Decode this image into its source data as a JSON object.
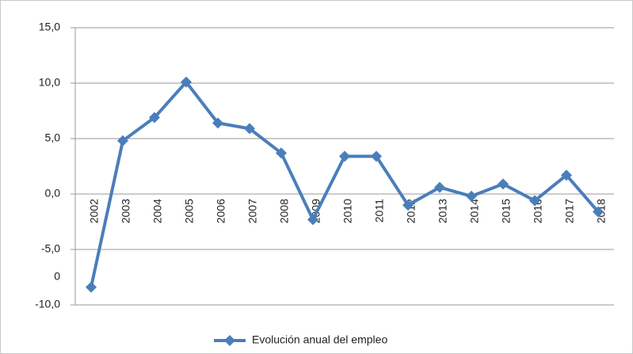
{
  "chart_data": {
    "type": "line",
    "categories": [
      "2002",
      "2003",
      "2004",
      "2005",
      "2006",
      "2007",
      "2008",
      "2009",
      "2010",
      "2011",
      "2012",
      "2013",
      "2014",
      "2015",
      "2016",
      "2017",
      "2018"
    ],
    "series": [
      {
        "name": "Evolución anual del empleo",
        "color": "#4a7ebb",
        "values": [
          -8.4,
          4.8,
          6.9,
          10.1,
          6.4,
          5.9,
          3.7,
          -2.3,
          3.4,
          3.4,
          -1.0,
          0.6,
          -0.2,
          0.9,
          -0.6,
          1.7,
          -1.6
        ]
      }
    ],
    "ylim": [
      -10,
      15
    ],
    "yticks": [
      {
        "value": -10,
        "label": "-10,0"
      },
      {
        "value": -5,
        "label": "-5,0"
      },
      {
        "value": 0,
        "label": "0,0"
      },
      {
        "value": 5,
        "label": "5,0"
      },
      {
        "value": 10,
        "label": "10,0"
      },
      {
        "value": 15,
        "label": "15,0"
      }
    ],
    "annotations": [
      "0"
    ],
    "grid": true,
    "legend": "bottom"
  }
}
